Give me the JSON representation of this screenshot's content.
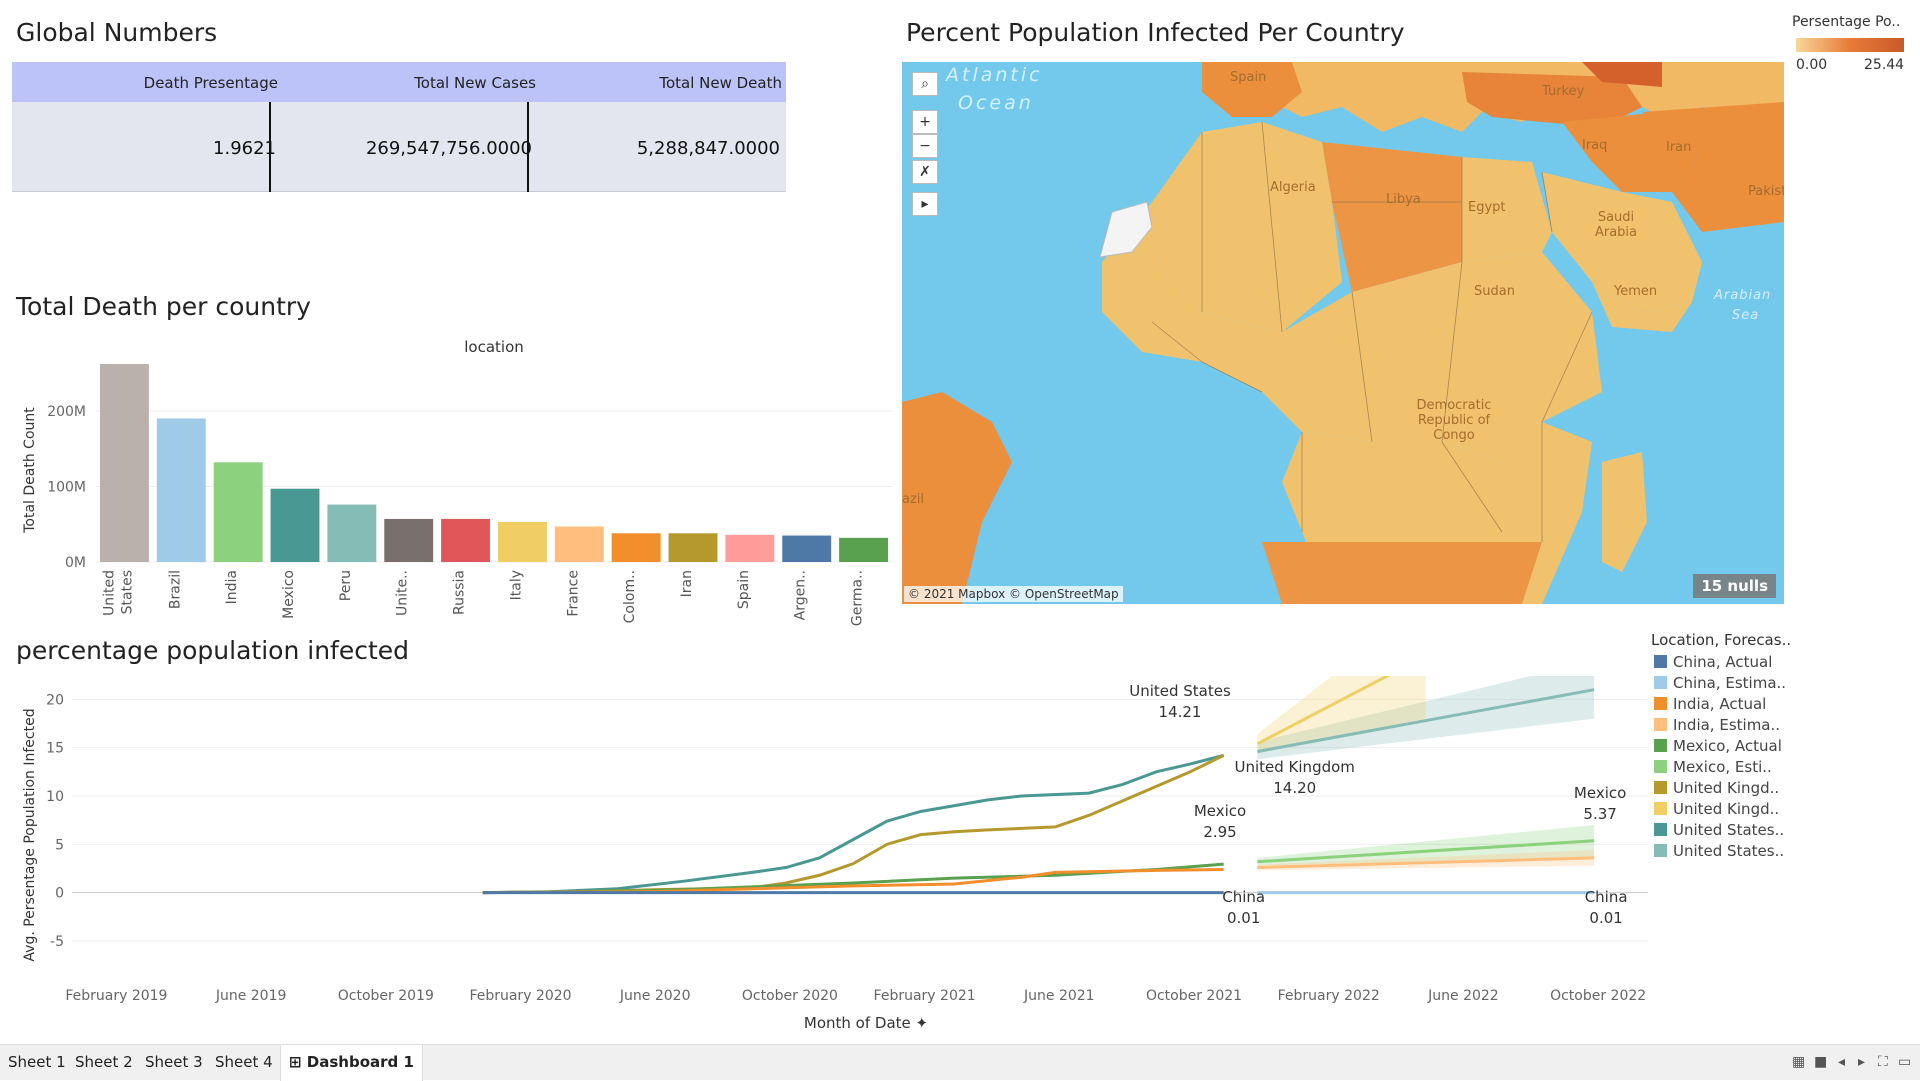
{
  "global_numbers": {
    "title": "Global Numbers",
    "columns": [
      "Death Presentage",
      "Total New Cases",
      "Total New Death"
    ],
    "values": [
      "1.9621",
      "269,547,756.0000",
      "5,288,847.0000"
    ]
  },
  "map": {
    "title": "Percent Population Infected Per Country",
    "attribution": "© 2021 Mapbox © OpenStreetMap",
    "nulls": "15 nulls",
    "controls": [
      "⌕",
      "+",
      "−",
      "✗",
      "▸"
    ],
    "countries": [
      "Spain",
      "Turkey",
      "Iraq",
      "Iran",
      "Algeria",
      "Libya",
      "Egypt",
      "Saudi Arabia",
      "Pakist",
      "Sudan",
      "Yemen",
      "Democratic Republic of Congo",
      "azil"
    ],
    "seas": [
      "Atlantic",
      "Ocean",
      "Arabian",
      "Sea"
    ],
    "legend": {
      "title": "Persentage Po..",
      "min": "0.00",
      "max": "25.44"
    }
  },
  "bar_section": {
    "title": "Total Death per country"
  },
  "line_section": {
    "title": "percentage population infected"
  },
  "line_legend": {
    "title": "Location, Forecas..",
    "items": [
      {
        "label": "China, Actual",
        "color": "#4e79a7"
      },
      {
        "label": "China, Estima..",
        "color": "#a0cbe8"
      },
      {
        "label": "India, Actual",
        "color": "#f28e2b"
      },
      {
        "label": "India, Estima..",
        "color": "#ffbe7d"
      },
      {
        "label": "Mexico, Actual",
        "color": "#59a14f"
      },
      {
        "label": "Mexico, Esti..",
        "color": "#8cd17d"
      },
      {
        "label": "United Kingd..",
        "color": "#b6992d"
      },
      {
        "label": "United Kingd..",
        "color": "#f1ce63"
      },
      {
        "label": "United States..",
        "color": "#499894"
      },
      {
        "label": "United States..",
        "color": "#86bcb6"
      }
    ]
  },
  "chart_data": [
    {
      "type": "bar",
      "title": "Total Death per country",
      "xlabel": "location",
      "ylabel": "Total Death Count",
      "categories": [
        "United States",
        "Brazil",
        "India",
        "Mexico",
        "Peru",
        "Unite..",
        "Russia",
        "Italy",
        "France",
        "Colom..",
        "Iran",
        "Spain",
        "Argen..",
        "Germa.."
      ],
      "values": [
        262,
        190,
        132,
        97,
        76,
        57,
        57,
        53,
        47,
        38,
        38,
        36,
        35,
        32
      ],
      "colors": [
        "#bab0ac",
        "#a0cbe8",
        "#8cd17d",
        "#499894",
        "#86bcb6",
        "#79706e",
        "#e15759",
        "#f1ce63",
        "#ffbe7d",
        "#f28e2b",
        "#b6992d",
        "#ff9d9a",
        "#4e79a7",
        "#59a14f"
      ],
      "y_ticks": [
        "0M",
        "100M",
        "200M"
      ],
      "ylim": [
        0,
        270
      ]
    },
    {
      "type": "line",
      "title": "percentage population infected",
      "xlabel": "Month of Date",
      "ylabel": "Avg. Persentage Population Infected",
      "x_ticks": [
        "February 2019",
        "June 2019",
        "October 2019",
        "February 2020",
        "June 2020",
        "October 2020",
        "February 2021",
        "June 2021",
        "October 2021",
        "February 2022",
        "June 2022",
        "October 2022"
      ],
      "y_ticks": [
        -5,
        0,
        5,
        10,
        15,
        20
      ],
      "ylim": [
        -8,
        22
      ],
      "series": [
        {
          "name": "United States",
          "kind": "actual",
          "color": "#499894",
          "points": [
            [
              "2020-01",
              0
            ],
            [
              "2020-03",
              0.1
            ],
            [
              "2020-05",
              0.4
            ],
            [
              "2020-07",
              1.2
            ],
            [
              "2020-09",
              2.1
            ],
            [
              "2020-10",
              2.6
            ],
            [
              "2020-11",
              3.6
            ],
            [
              "2020-12",
              5.5
            ],
            [
              "2021-01",
              7.4
            ],
            [
              "2021-02",
              8.4
            ],
            [
              "2021-04",
              9.6
            ],
            [
              "2021-05",
              10.0
            ],
            [
              "2021-07",
              10.3
            ],
            [
              "2021-08",
              11.2
            ],
            [
              "2021-09",
              12.5
            ],
            [
              "2021-10",
              13.3
            ],
            [
              "2021-11",
              14.21
            ]
          ]
        },
        {
          "name": "United Kingdom",
          "kind": "actual",
          "color": "#b6992d",
          "points": [
            [
              "2020-01",
              0
            ],
            [
              "2020-04",
              0.1
            ],
            [
              "2020-06",
              0.3
            ],
            [
              "2020-09",
              0.5
            ],
            [
              "2020-10",
              1.0
            ],
            [
              "2020-11",
              1.8
            ],
            [
              "2020-12",
              3.0
            ],
            [
              "2021-01",
              5.0
            ],
            [
              "2021-02",
              6.0
            ],
            [
              "2021-03",
              6.3
            ],
            [
              "2021-04",
              6.5
            ],
            [
              "2021-06",
              6.8
            ],
            [
              "2021-07",
              8.0
            ],
            [
              "2021-08",
              9.5
            ],
            [
              "2021-09",
              11.0
            ],
            [
              "2021-10",
              12.5
            ],
            [
              "2021-11",
              14.2
            ]
          ]
        },
        {
          "name": "Mexico",
          "kind": "actual",
          "color": "#59a14f",
          "points": [
            [
              "2020-01",
              0
            ],
            [
              "2020-06",
              0.2
            ],
            [
              "2020-09",
              0.6
            ],
            [
              "2020-12",
              1.0
            ],
            [
              "2021-03",
              1.5
            ],
            [
              "2021-06",
              1.8
            ],
            [
              "2021-09",
              2.4
            ],
            [
              "2021-11",
              2.95
            ]
          ]
        },
        {
          "name": "India",
          "kind": "actual",
          "color": "#f28e2b",
          "points": [
            [
              "2020-01",
              0
            ],
            [
              "2020-06",
              0.1
            ],
            [
              "2020-09",
              0.4
            ],
            [
              "2020-12",
              0.7
            ],
            [
              "2021-03",
              0.9
            ],
            [
              "2021-05",
              1.6
            ],
            [
              "2021-06",
              2.1
            ],
            [
              "2021-09",
              2.3
            ],
            [
              "2021-11",
              2.4
            ]
          ]
        },
        {
          "name": "China",
          "kind": "actual",
          "color": "#4e79a7",
          "points": [
            [
              "2020-01",
              0
            ],
            [
              "2021-11",
              0.01
            ]
          ]
        },
        {
          "name": "United States",
          "kind": "estimate",
          "color": "#86bcb6",
          "points": [
            [
              "2021-12",
              14.6
            ],
            [
              "2022-10",
              21.0
            ]
          ],
          "band": [
            [
              13.8,
              15.6
            ],
            [
              18.0,
              24.0
            ]
          ]
        },
        {
          "name": "United Kingdom",
          "kind": "estimate",
          "color": "#f1ce63",
          "points": [
            [
              "2021-12",
              15.4
            ],
            [
              "2022-05",
              24.5
            ]
          ],
          "band": [
            [
              14.4,
              16.4
            ],
            [
              18.0,
              30.0
            ]
          ]
        },
        {
          "name": "Mexico",
          "kind": "estimate",
          "color": "#8cd17d",
          "points": [
            [
              "2021-12",
              3.2
            ],
            [
              "2022-10",
              5.37
            ]
          ],
          "band": [
            [
              2.8,
              3.6
            ],
            [
              3.7,
              7.0
            ]
          ]
        },
        {
          "name": "India",
          "kind": "estimate",
          "color": "#ffbe7d",
          "points": [
            [
              "2021-12",
              2.6
            ],
            [
              "2022-10",
              3.6
            ]
          ],
          "band": [
            [
              2.3,
              2.9
            ],
            [
              2.8,
              4.4
            ]
          ]
        },
        {
          "name": "China",
          "kind": "estimate",
          "color": "#a0cbe8",
          "points": [
            [
              "2021-12",
              0.01
            ],
            [
              "2022-10",
              0.01
            ]
          ]
        }
      ],
      "annotations": [
        {
          "text": "United States",
          "value": "14.21"
        },
        {
          "text": "United Kingdom",
          "value": "14.20"
        },
        {
          "text": "Mexico",
          "value": "2.95"
        },
        {
          "text": "Mexico",
          "value": "5.37"
        },
        {
          "text": "China",
          "value": "0.01"
        },
        {
          "text": "China",
          "value": "0.01"
        }
      ]
    }
  ],
  "tabs": [
    "Sheet 1",
    "Sheet 2",
    "Sheet 3",
    "Sheet 4",
    "Dashboard 1"
  ]
}
